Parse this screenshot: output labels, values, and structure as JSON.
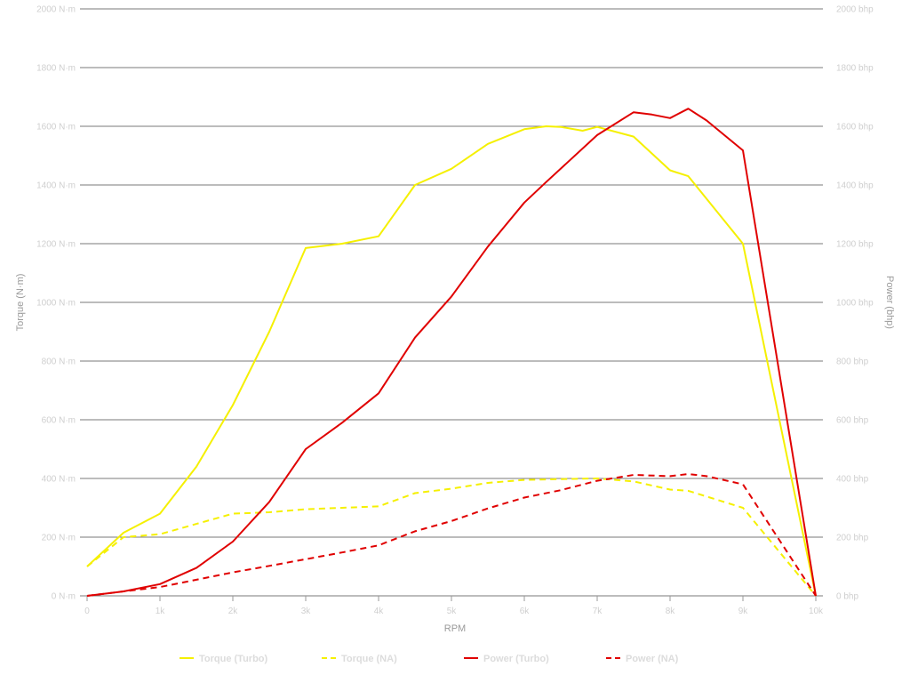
{
  "chart_data": {
    "type": "line",
    "xlabel": "RPM",
    "ylabel_left": "Torque (N·m)",
    "ylabel_right": "Power (bhp)",
    "xlim": [
      0,
      10000
    ],
    "ylim_left": [
      0,
      2000
    ],
    "ylim_right": [
      0,
      2000
    ],
    "x_ticks": [
      0,
      1000,
      2000,
      3000,
      4000,
      5000,
      6000,
      7000,
      8000,
      9000,
      10000
    ],
    "x_tick_labels": [
      "0",
      "1k",
      "2k",
      "3k",
      "4k",
      "5k",
      "6k",
      "7k",
      "8k",
      "9k",
      "10k"
    ],
    "y_ticks": [
      0,
      200,
      400,
      600,
      800,
      1000,
      1200,
      1400,
      1600,
      1800,
      2000
    ],
    "y_left_tick_labels": [
      "0 N·m",
      "200 N·m",
      "400 N·m",
      "600 N·m",
      "800 N·m",
      "1000 N·m",
      "1200 N·m",
      "1400 N·m",
      "1600 N·m",
      "1800 N·m",
      "2000 N·m"
    ],
    "y_right_tick_labels": [
      "0 bhp",
      "200 bhp",
      "400 bhp",
      "600 bhp",
      "800 bhp",
      "1000 bhp",
      "1200 bhp",
      "1400 bhp",
      "1600 bhp",
      "1800 bhp",
      "2000 bhp"
    ],
    "grid": "horizontal",
    "legend_position": "bottom",
    "series": [
      {
        "name": "Torque (Turbo)",
        "color": "#f5f000",
        "style": "solid",
        "axis": "left",
        "points": [
          [
            0,
            100
          ],
          [
            500,
            215
          ],
          [
            1000,
            280
          ],
          [
            1500,
            440
          ],
          [
            2000,
            650
          ],
          [
            2500,
            900
          ],
          [
            3000,
            1185
          ],
          [
            3500,
            1200
          ],
          [
            4000,
            1225
          ],
          [
            4500,
            1400
          ],
          [
            5000,
            1455
          ],
          [
            5500,
            1540
          ],
          [
            6000,
            1590
          ],
          [
            6300,
            1600
          ],
          [
            6500,
            1598
          ],
          [
            6800,
            1585
          ],
          [
            7000,
            1598
          ],
          [
            7500,
            1565
          ],
          [
            8000,
            1450
          ],
          [
            8250,
            1430
          ],
          [
            9000,
            1200
          ],
          [
            10000,
            0
          ]
        ]
      },
      {
        "name": "Torque (NA)",
        "color": "#f5f000",
        "style": "dashed",
        "axis": "left",
        "points": [
          [
            0,
            100
          ],
          [
            500,
            200
          ],
          [
            1000,
            210
          ],
          [
            1500,
            245
          ],
          [
            2000,
            280
          ],
          [
            2500,
            285
          ],
          [
            3000,
            295
          ],
          [
            3500,
            300
          ],
          [
            4000,
            305
          ],
          [
            4500,
            350
          ],
          [
            5000,
            365
          ],
          [
            5500,
            385
          ],
          [
            6000,
            395
          ],
          [
            6500,
            398
          ],
          [
            7000,
            400
          ],
          [
            7500,
            390
          ],
          [
            8000,
            362
          ],
          [
            8250,
            358
          ],
          [
            9000,
            300
          ],
          [
            10000,
            0
          ]
        ]
      },
      {
        "name": "Power (Turbo)",
        "color": "#e00000",
        "style": "solid",
        "axis": "right",
        "points": [
          [
            0,
            0
          ],
          [
            500,
            15
          ],
          [
            1000,
            40
          ],
          [
            1500,
            95
          ],
          [
            2000,
            185
          ],
          [
            2500,
            320
          ],
          [
            3000,
            500
          ],
          [
            3500,
            590
          ],
          [
            4000,
            690
          ],
          [
            4500,
            880
          ],
          [
            5000,
            1020
          ],
          [
            5500,
            1190
          ],
          [
            6000,
            1340
          ],
          [
            6300,
            1410
          ],
          [
            7000,
            1570
          ],
          [
            7500,
            1648
          ],
          [
            7750,
            1640
          ],
          [
            8000,
            1628
          ],
          [
            8250,
            1660
          ],
          [
            8500,
            1620
          ],
          [
            9000,
            1518
          ],
          [
            10000,
            0
          ]
        ]
      },
      {
        "name": "Power (NA)",
        "color": "#e00000",
        "style": "dashed",
        "axis": "right",
        "points": [
          [
            0,
            0
          ],
          [
            500,
            15
          ],
          [
            1000,
            30
          ],
          [
            1500,
            55
          ],
          [
            2000,
            80
          ],
          [
            2500,
            102
          ],
          [
            3000,
            125
          ],
          [
            3500,
            148
          ],
          [
            4000,
            172
          ],
          [
            4500,
            220
          ],
          [
            5000,
            255
          ],
          [
            5500,
            298
          ],
          [
            6000,
            335
          ],
          [
            6500,
            360
          ],
          [
            7000,
            392
          ],
          [
            7500,
            412
          ],
          [
            8000,
            408
          ],
          [
            8250,
            415
          ],
          [
            8500,
            408
          ],
          [
            9000,
            380
          ],
          [
            10000,
            0
          ]
        ]
      }
    ]
  }
}
